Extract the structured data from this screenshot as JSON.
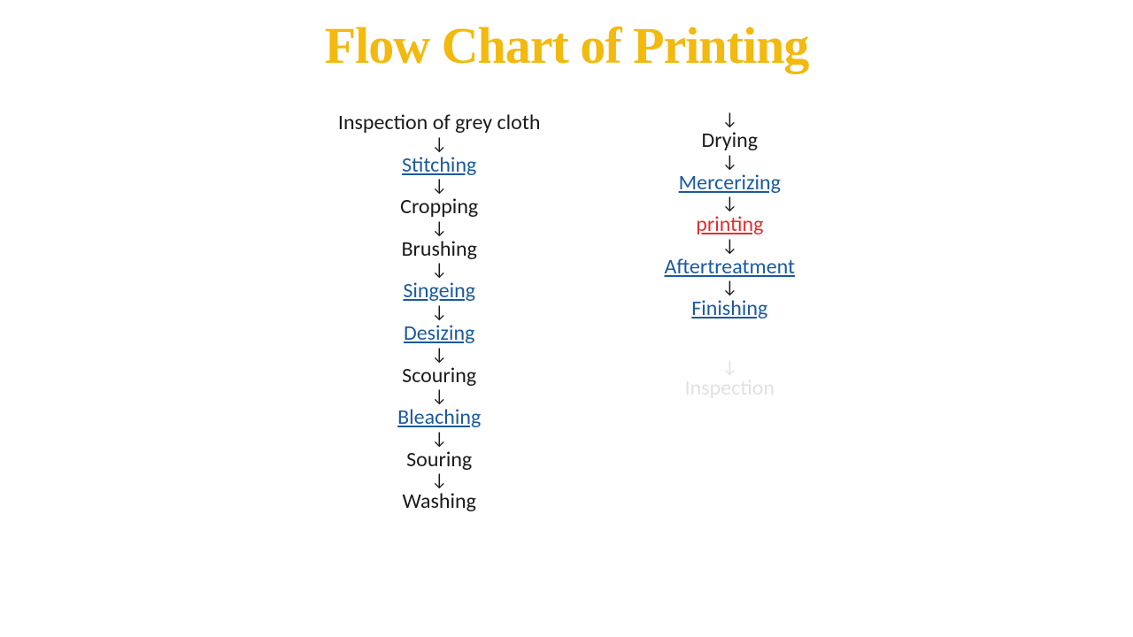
{
  "title": {
    "text": "Flow Chart of Printing",
    "color": "#f2b90f",
    "fontsize": 58
  },
  "arrow_glyph": "↓",
  "styles": {
    "step_fontsize": 24,
    "step_color_normal": "#1a1a1a",
    "step_color_link": "#1c5a9c",
    "step_color_highlight": "#e03030",
    "step_color_faded": "#8a8a8a",
    "arrow_fontsize": 20,
    "arrow_color": "#1a1a1a"
  },
  "columns": [
    {
      "items": [
        {
          "type": "step",
          "text": "Inspection of grey cloth",
          "style": "normal"
        },
        {
          "type": "arrow"
        },
        {
          "type": "step",
          "text": "Stitching",
          "style": "link"
        },
        {
          "type": "arrow"
        },
        {
          "type": "step",
          "text": "Cropping",
          "style": "normal"
        },
        {
          "type": "arrow"
        },
        {
          "type": "step",
          "text": "Brushing",
          "style": "normal"
        },
        {
          "type": "arrow"
        },
        {
          "type": "step",
          "text": "Singeing",
          "style": "link"
        },
        {
          "type": "arrow"
        },
        {
          "type": "step",
          "text": "Desizing",
          "style": "link"
        },
        {
          "type": "arrow"
        },
        {
          "type": "step",
          "text": "Scouring",
          "style": "normal"
        },
        {
          "type": "arrow"
        },
        {
          "type": "step",
          "text": "Bleaching",
          "style": "link"
        },
        {
          "type": "arrow"
        },
        {
          "type": "step",
          "text": "Souring",
          "style": "normal"
        },
        {
          "type": "arrow"
        },
        {
          "type": "step",
          "text": "Washing",
          "style": "normal"
        }
      ]
    },
    {
      "items": [
        {
          "type": "arrow"
        },
        {
          "type": "step",
          "text": "Drying",
          "style": "normal"
        },
        {
          "type": "arrow"
        },
        {
          "type": "step",
          "text": "Mercerizing",
          "style": "link"
        },
        {
          "type": "arrow"
        },
        {
          "type": "step",
          "text": "printing",
          "style": "highlight"
        },
        {
          "type": "arrow"
        },
        {
          "type": "step",
          "text": "Aftertreatment",
          "style": "link"
        },
        {
          "type": "arrow"
        },
        {
          "type": "step",
          "text": "Finishing",
          "style": "link"
        },
        {
          "type": "gap"
        },
        {
          "type": "arrow",
          "faded": true
        },
        {
          "type": "step",
          "text": "Inspection",
          "style": "faded"
        }
      ]
    }
  ]
}
